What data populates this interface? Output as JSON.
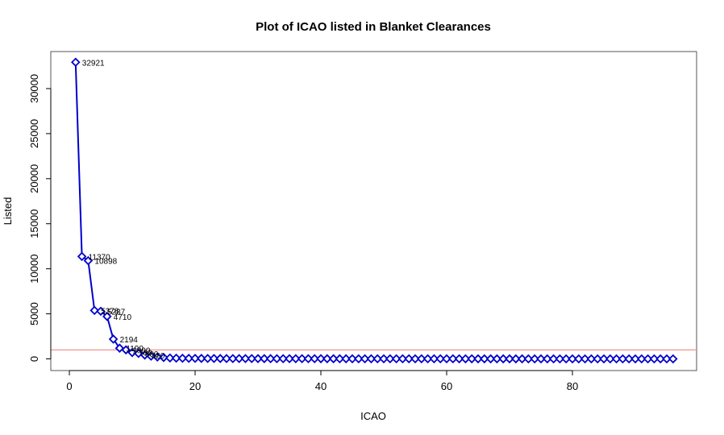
{
  "chart_data": {
    "type": "line",
    "title": "Plot of ICAO listed in Blanket Clearances",
    "xlabel": "ICAO",
    "ylabel": "Listed",
    "xlim": [
      0,
      96
    ],
    "ylim": [
      0,
      32921
    ],
    "x_ticks": [
      0,
      20,
      40,
      60,
      80
    ],
    "y_ticks": [
      0,
      5000,
      10000,
      15000,
      20000,
      25000,
      30000
    ],
    "x_tick_labels": [
      "0",
      "20",
      "40",
      "60",
      "80"
    ],
    "y_tick_labels": [
      "0",
      "5000",
      "10000",
      "15000",
      "20000",
      "25000",
      "30000"
    ],
    "reference_line": {
      "y": 1000,
      "color": "#f4a0a0"
    },
    "series": [
      {
        "color": "#0000cc",
        "marker": "diamond",
        "x": [
          1,
          2,
          3,
          4,
          5,
          6,
          7,
          8,
          9,
          10,
          11,
          12,
          13,
          14,
          15,
          16,
          17,
          18,
          19,
          20,
          21,
          22,
          23,
          24,
          25,
          26,
          27,
          28,
          29,
          30,
          31,
          32,
          33,
          34,
          35,
          36,
          37,
          38,
          39,
          40,
          41,
          42,
          43,
          44,
          45,
          46,
          47,
          48,
          49,
          50,
          51,
          52,
          53,
          54,
          55,
          56,
          57,
          58,
          59,
          60,
          61,
          62,
          63,
          64,
          65,
          66,
          67,
          68,
          69,
          70,
          71,
          72,
          73,
          74,
          75,
          76,
          77,
          78,
          79,
          80,
          81,
          82,
          83,
          84,
          85,
          86,
          87,
          88,
          89,
          90,
          91,
          92,
          93,
          94,
          95,
          96
        ],
        "values": [
          32921,
          11370,
          10898,
          5378,
          5287,
          4710,
          2194,
          1190,
          1000,
          700,
          600,
          420,
          300,
          200,
          150,
          100,
          80,
          70,
          60,
          55,
          50,
          45,
          42,
          40,
          38,
          36,
          34,
          32,
          30,
          28,
          27,
          26,
          25,
          24,
          23,
          22,
          21,
          20,
          19,
          18,
          17,
          16,
          15,
          15,
          14,
          14,
          13,
          13,
          12,
          12,
          11,
          11,
          10,
          10,
          10,
          9,
          9,
          9,
          8,
          8,
          8,
          7,
          7,
          7,
          6,
          6,
          6,
          6,
          5,
          5,
          5,
          5,
          4,
          4,
          4,
          4,
          4,
          3,
          3,
          3,
          3,
          3,
          3,
          2,
          2,
          2,
          2,
          2,
          2,
          2,
          1,
          1,
          1,
          1,
          1,
          1
        ]
      }
    ],
    "data_labels": [
      {
        "x": 1,
        "y": 32921,
        "text": "32921"
      },
      {
        "x": 2,
        "y": 11370,
        "text": "11370"
      },
      {
        "x": 3,
        "y": 10898,
        "text": "10898"
      },
      {
        "x": 4,
        "y": 5378,
        "text": "5378"
      },
      {
        "x": 5,
        "y": 5287,
        "text": "5287"
      },
      {
        "x": 6,
        "y": 4710,
        "text": "4710"
      },
      {
        "x": 7,
        "y": 2194,
        "text": "2194"
      },
      {
        "x": 8,
        "y": 1190,
        "text": "1190"
      },
      {
        "x": 9,
        "y": 1000,
        "text": "1000"
      },
      {
        "x": 10,
        "y": 700,
        "text": "700"
      },
      {
        "x": 11,
        "y": 600,
        "text": "600"
      },
      {
        "x": 12,
        "y": 420,
        "text": "420"
      }
    ],
    "grid": false,
    "legend": "none"
  }
}
